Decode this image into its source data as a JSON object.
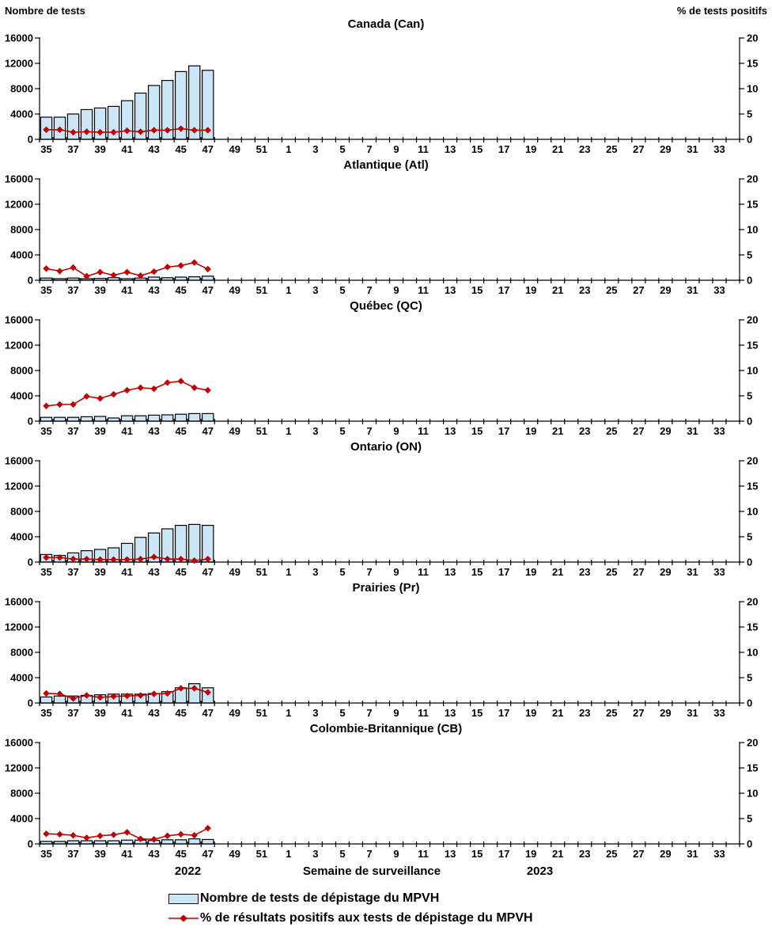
{
  "header": {
    "left_axis_label": "Nombre de tests",
    "right_axis_label": "% de tests positifs"
  },
  "axes": {
    "left": {
      "ticks": [
        0,
        4000,
        8000,
        12000,
        16000
      ],
      "max": 16000
    },
    "right": {
      "ticks": [
        0,
        5,
        10,
        15,
        20
      ],
      "max": 20
    },
    "x_tick_labels": [
      35,
      37,
      39,
      41,
      43,
      45,
      47,
      49,
      51,
      1,
      3,
      5,
      7,
      9,
      11,
      13,
      15,
      17,
      19,
      21,
      23,
      25,
      27,
      29,
      31,
      33
    ]
  },
  "footer": {
    "year_left": "2022",
    "axis_title": "Semaine de surveillance",
    "year_right": "2023"
  },
  "legend": [
    {
      "type": "bar",
      "label": "Nombre de tests de dépistage du MPVH"
    },
    {
      "type": "line",
      "label": "% de résultats positifs aux tests de dépistage du MPVH"
    }
  ],
  "colors": {
    "bar_fill": "#CDE6F7",
    "bar_border": "#000000",
    "line": "#C00000"
  },
  "chart_data": {
    "type": "bar+line",
    "x_weeks": [
      35,
      36,
      37,
      38,
      39,
      40,
      41,
      42,
      43,
      44,
      45,
      46,
      47,
      48,
      49,
      50,
      51,
      52,
      1,
      2,
      3,
      4,
      5,
      6,
      7,
      8,
      9,
      10,
      11,
      12,
      13,
      14,
      15,
      16,
      17,
      18,
      19,
      20,
      21,
      22,
      23,
      24,
      25,
      26,
      27,
      28,
      29,
      30,
      31,
      32,
      33,
      34
    ],
    "data_weeks": [
      35,
      36,
      37,
      38,
      39,
      40,
      41,
      42,
      43,
      44,
      45,
      46,
      47
    ],
    "left_axis_range": [
      0,
      16000
    ],
    "right_axis_range": [
      0,
      20
    ],
    "panels": [
      {
        "title": "Canada (Can)",
        "tests": [
          3500,
          3500,
          4000,
          4700,
          4950,
          5200,
          6100,
          7300,
          8500,
          9300,
          10700,
          11600,
          10900
        ],
        "pct_positive": [
          1.9,
          1.9,
          1.4,
          1.5,
          1.4,
          1.4,
          1.7,
          1.5,
          1.8,
          1.8,
          2.1,
          1.8,
          1.8
        ]
      },
      {
        "title": "Atlantique (Atl)",
        "tests": [
          350,
          250,
          350,
          250,
          300,
          400,
          250,
          350,
          500,
          400,
          500,
          550,
          650
        ],
        "pct_positive": [
          2.3,
          1.8,
          2.5,
          0.8,
          1.6,
          1.0,
          1.6,
          0.9,
          1.7,
          2.6,
          2.9,
          3.5,
          2.2
        ]
      },
      {
        "title": "Québec (QC)",
        "tests": [
          600,
          600,
          600,
          700,
          750,
          500,
          850,
          850,
          950,
          1000,
          1100,
          1200,
          1200
        ],
        "pct_positive": [
          3.0,
          3.3,
          3.3,
          4.9,
          4.5,
          5.3,
          6.1,
          6.6,
          6.4,
          7.6,
          7.9,
          6.6,
          6.1
        ]
      },
      {
        "title": "Ontario (ON)",
        "tests": [
          1200,
          1050,
          1450,
          1800,
          2000,
          2250,
          2950,
          3900,
          4600,
          5250,
          5800,
          5950,
          5800
        ],
        "pct_positive": [
          0.9,
          0.9,
          0.6,
          0.6,
          0.5,
          0.5,
          0.5,
          0.6,
          1.0,
          0.6,
          0.6,
          0.3,
          0.6
        ]
      },
      {
        "title": "Prairies (Pr)",
        "tests": [
          950,
          1100,
          1100,
          1200,
          1300,
          1400,
          1400,
          1400,
          1500,
          1800,
          2400,
          3050,
          2400
        ],
        "pct_positive": [
          1.9,
          1.8,
          0.9,
          1.5,
          1.1,
          1.3,
          1.4,
          1.5,
          1.8,
          1.9,
          2.9,
          2.9,
          2.1
        ]
      },
      {
        "title": "Colombie-Britannique (CB)",
        "tests": [
          400,
          400,
          500,
          500,
          500,
          500,
          600,
          600,
          550,
          650,
          650,
          800,
          700
        ],
        "pct_positive": [
          2.0,
          1.9,
          1.7,
          1.2,
          1.6,
          1.8,
          2.3,
          1.0,
          0.9,
          1.6,
          1.9,
          1.7,
          3.1
        ]
      }
    ]
  }
}
